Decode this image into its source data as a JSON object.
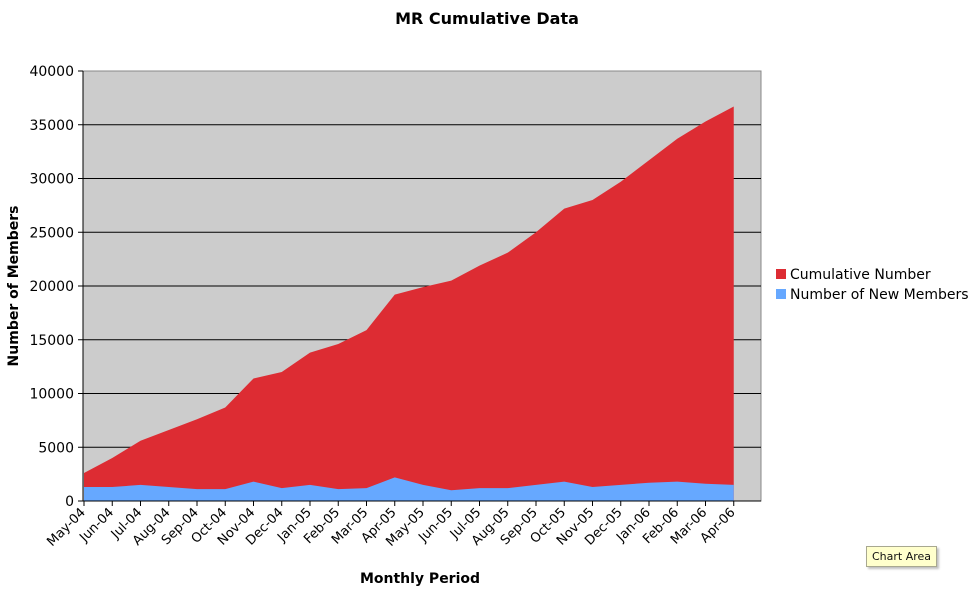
{
  "chart_data": {
    "type": "area",
    "stacked": false,
    "title": "MR Cumulative Data",
    "xlabel": "Monthly Period",
    "ylabel": "Number of Members",
    "ylim": [
      0,
      40000
    ],
    "yticks": [
      0,
      5000,
      10000,
      15000,
      20000,
      25000,
      30000,
      35000,
      40000
    ],
    "grid": true,
    "legend_position": "right",
    "categories": [
      "May-04",
      "Jun-04",
      "Jul-04",
      "Aug-04",
      "Sep-04",
      "Oct-04",
      "Nov-04",
      "Dec-04",
      "Jan-05",
      "Feb-05",
      "Mar-05",
      "Apr-05",
      "May-05",
      "Jun-05",
      "Jul-05",
      "Aug-05",
      "Sep-05",
      "Oct-05",
      "Nov-05",
      "Dec-05",
      "Jan-06",
      "Feb-06",
      "Mar-06",
      "Apr-06"
    ],
    "series": [
      {
        "name": "Cumulative Number",
        "color": "#dd2c33",
        "values": [
          2600,
          4000,
          5600,
          6600,
          7600,
          8700,
          11400,
          12000,
          13800,
          14600,
          15900,
          19200,
          19900,
          20500,
          21900,
          23100,
          25000,
          27200,
          28000,
          29700,
          31700,
          33700,
          35300,
          36700
        ]
      },
      {
        "name": "Number of New Members",
        "color": "#66a8ff",
        "values": [
          1300,
          1300,
          1500,
          1300,
          1100,
          1100,
          1800,
          1200,
          1500,
          1100,
          1200,
          2200,
          1500,
          1000,
          1200,
          1200,
          1500,
          1800,
          1300,
          1500,
          1700,
          1800,
          1600,
          1500
        ]
      }
    ],
    "plot_background": "#cccccc"
  },
  "tooltip": {
    "label": "Chart Area"
  }
}
